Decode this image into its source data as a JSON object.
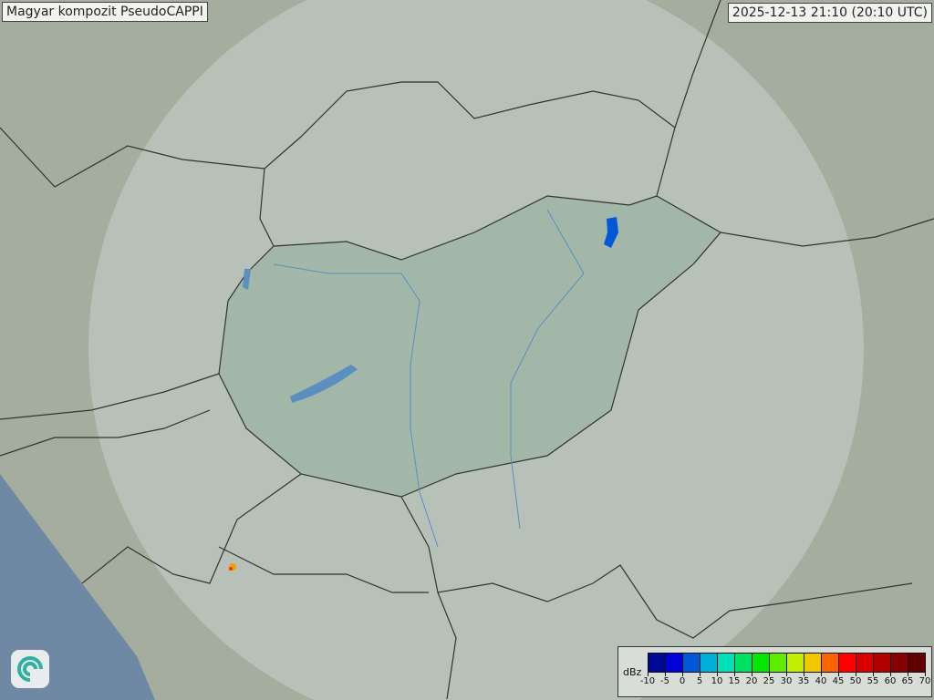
{
  "title": "Magyar kompozit  PseudoCAPPI",
  "timestamp": "2025-12-13 21:10 (20:10 UTC)",
  "legend": {
    "unit": "dBz",
    "ticks": [
      "-10",
      "-5",
      "0",
      "5",
      "10",
      "15",
      "20",
      "25",
      "30",
      "35",
      "40",
      "45",
      "50",
      "55",
      "60",
      "65",
      "70"
    ],
    "colors": [
      "#000a96",
      "#0000d8",
      "#0058d8",
      "#00b0d8",
      "#00e0b8",
      "#00e060",
      "#00e800",
      "#60ec00",
      "#c0f000",
      "#f0c800",
      "#ff6400",
      "#ff0000",
      "#d80000",
      "#b00000",
      "#880000",
      "#600000"
    ]
  },
  "colors": {
    "land": "#a4ad9e",
    "sea": "#6f88a4",
    "radar_coverage": "#dfe8e4",
    "hungary": "#8fae9c",
    "borders": "#333333",
    "water": "#5a8fc0"
  },
  "logo_icon": "swirl-logo-icon"
}
